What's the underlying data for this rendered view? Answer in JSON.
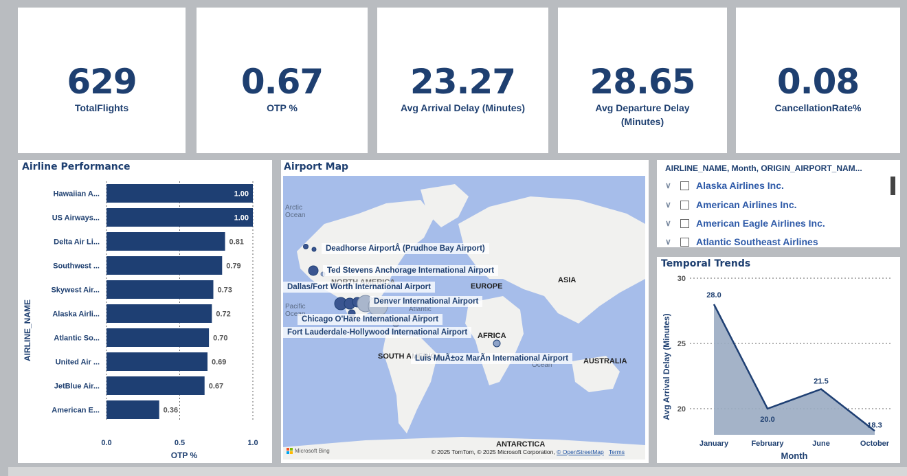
{
  "kpis": [
    {
      "value": "629",
      "label": "TotalFlights"
    },
    {
      "value": "0.67",
      "label": "OTP %"
    },
    {
      "value": "23.27",
      "label": "Avg Arrival Delay (Minutes)"
    },
    {
      "value": "28.65",
      "label": "Avg Departure Delay (Minutes)"
    },
    {
      "value": "0.08",
      "label": "CancellationRate%"
    }
  ],
  "airline_performance": {
    "title": "Airline Performance",
    "ylabel": "AIRLINE_NAME",
    "xlabel": "OTP %",
    "ticks": [
      "0.0",
      "0.5",
      "1.0"
    ]
  },
  "airport_map": {
    "title": "Airport Map",
    "airports": [
      "Deadhorse AirportÂ (Prudhoe Bay Airport)",
      "Ted Stevens Anchorage International Airport",
      "Dallas/Fort Worth International Airport",
      "Denver International Airport",
      "Chicago O'Hare International Airport",
      "Fort Lauderdale-Hollywood International Airport",
      "Luis MuÃ±oz MarÃ­n International Airport"
    ],
    "regions": [
      "NORTH AMERICA",
      "EUROPE",
      "ASIA",
      "AFRICA",
      "SOUTH AMERICA",
      "AUSTRALIA",
      "ANTARCTICA"
    ],
    "oceans": {
      "arctic": "Arctic Ocean",
      "pacific": "Pacific Ocean",
      "atlantic": "Atlantic Ocean",
      "indian": "Ocean"
    },
    "attribution": "© 2025 TomTom, © 2025 Microsoft Corporation,",
    "osm_link": "© OpenStreetMap",
    "terms_link": "Terms",
    "bing_logo": "Microsoft Bing"
  },
  "slicer": {
    "header": "AIRLINE_NAME, Month, ORIGIN_AIRPORT_NAM...",
    "items": [
      "Alaska Airlines Inc.",
      "American Airlines Inc.",
      "American Eagle Airlines Inc.",
      "Atlantic Southeast Airlines"
    ]
  },
  "temporal": {
    "title": "Temporal Trends",
    "ylabel": "Avg Arrival Delay (Minutes)",
    "xlabel": "Month"
  },
  "chart_data": [
    {
      "type": "bar",
      "title": "Airline Performance",
      "ylabel": "AIRLINE_NAME",
      "xlabel": "OTP %",
      "xlim": [
        0,
        1
      ],
      "categories": [
        "Hawaiian A...",
        "US Airways...",
        "Delta Air Li...",
        "Southwest ...",
        "Skywest Air...",
        "Alaska Airli...",
        "Atlantic So...",
        "United Air ...",
        "JetBlue Air...",
        "American E..."
      ],
      "values": [
        1.0,
        1.0,
        0.81,
        0.79,
        0.73,
        0.72,
        0.7,
        0.69,
        0.67,
        0.36
      ],
      "data_labels": [
        "1.00",
        "1.00",
        "0.81",
        "0.79",
        "0.73",
        "0.72",
        "0.70",
        "0.69",
        "0.67",
        "0.36"
      ],
      "color": "#1e3f73"
    },
    {
      "type": "area",
      "title": "Temporal Trends",
      "xlabel": "Month",
      "ylabel": "Avg Arrival Delay (Minutes)",
      "categories": [
        "January",
        "February",
        "June",
        "October"
      ],
      "values": [
        28.0,
        20.0,
        21.5,
        18.3
      ],
      "data_labels": [
        "28.0",
        "20.0",
        "21.5",
        "18.3"
      ],
      "yticks": [
        "20",
        "25",
        "30"
      ],
      "ylim": [
        18,
        30
      ],
      "color": "#1e3f73",
      "fill": "#9aabc2"
    }
  ]
}
